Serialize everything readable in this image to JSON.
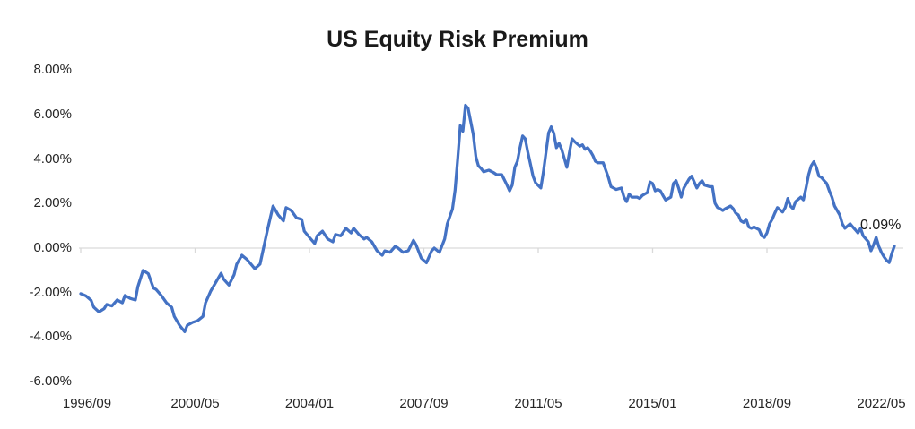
{
  "title": "US Equity Risk Premium",
  "annotation": {
    "label": "0.09%"
  },
  "colors": {
    "line": "#4472C4",
    "axis_line": "#D9D9D9",
    "tick_text": "#262626",
    "title_text": "#1a1a1a"
  },
  "chart_data": {
    "type": "line",
    "title": "US Equity Risk Premium",
    "series_name": "US Equity Risk Premium",
    "grid": "single horizontal baseline at 0%",
    "legend": "none",
    "end_point_label": "0.09%",
    "y_axis": {
      "unit": "%",
      "range": [
        -6,
        8
      ],
      "tick_values": [
        8,
        6,
        4,
        2,
        0,
        -2,
        -4,
        -6
      ],
      "tick_labels": [
        "8.00%",
        "6.00%",
        "4.00%",
        "2.00%",
        "0.00%",
        "-2.00%",
        "-4.00%",
        "-6.00%"
      ]
    },
    "x_axis": {
      "unit": "months since 1996/09 (monthly data)",
      "tick_month_offsets": [
        0,
        44,
        88,
        132,
        176,
        220,
        264,
        308
      ],
      "tick_labels": [
        "1996/09",
        "2000/05",
        "2004/01",
        "2007/09",
        "2011/05",
        "2015/01",
        "2018/09",
        "2022/05"
      ]
    },
    "points_format": [
      "months_since_1996_09",
      "equity_risk_premium_percent"
    ],
    "points": [
      [
        0,
        -2.05
      ],
      [
        2,
        -2.15
      ],
      [
        4,
        -2.35
      ],
      [
        5,
        -2.65
      ],
      [
        7,
        -2.87
      ],
      [
        9,
        -2.72
      ],
      [
        10,
        -2.53
      ],
      [
        12,
        -2.6
      ],
      [
        14,
        -2.33
      ],
      [
        16,
        -2.46
      ],
      [
        17,
        -2.13
      ],
      [
        19,
        -2.26
      ],
      [
        21,
        -2.33
      ],
      [
        22,
        -1.73
      ],
      [
        24,
        -1.0
      ],
      [
        26,
        -1.15
      ],
      [
        28,
        -1.8
      ],
      [
        29,
        -1.86
      ],
      [
        31,
        -2.13
      ],
      [
        33,
        -2.46
      ],
      [
        35,
        -2.66
      ],
      [
        36,
        -3.07
      ],
      [
        38,
        -3.47
      ],
      [
        40,
        -3.76
      ],
      [
        41,
        -3.47
      ],
      [
        43,
        -3.34
      ],
      [
        45,
        -3.26
      ],
      [
        47,
        -3.07
      ],
      [
        48,
        -2.46
      ],
      [
        50,
        -1.93
      ],
      [
        52,
        -1.53
      ],
      [
        54,
        -1.13
      ],
      [
        55,
        -1.4
      ],
      [
        57,
        -1.66
      ],
      [
        59,
        -1.19
      ],
      [
        60,
        -0.72
      ],
      [
        62,
        -0.32
      ],
      [
        64,
        -0.52
      ],
      [
        66,
        -0.79
      ],
      [
        67,
        -0.93
      ],
      [
        69,
        -0.72
      ],
      [
        71,
        0.36
      ],
      [
        72,
        0.89
      ],
      [
        74,
        1.89
      ],
      [
        76,
        1.49
      ],
      [
        78,
        1.22
      ],
      [
        79,
        1.82
      ],
      [
        81,
        1.69
      ],
      [
        83,
        1.36
      ],
      [
        85,
        1.29
      ],
      [
        86,
        0.76
      ],
      [
        88,
        0.48
      ],
      [
        90,
        0.21
      ],
      [
        91,
        0.56
      ],
      [
        93,
        0.76
      ],
      [
        95,
        0.41
      ],
      [
        97,
        0.28
      ],
      [
        98,
        0.61
      ],
      [
        100,
        0.55
      ],
      [
        102,
        0.89
      ],
      [
        104,
        0.68
      ],
      [
        105,
        0.89
      ],
      [
        107,
        0.61
      ],
      [
        109,
        0.41
      ],
      [
        110,
        0.48
      ],
      [
        112,
        0.28
      ],
      [
        114,
        -0.12
      ],
      [
        116,
        -0.32
      ],
      [
        117,
        -0.12
      ],
      [
        119,
        -0.19
      ],
      [
        121,
        0.08
      ],
      [
        122,
        0.01
      ],
      [
        124,
        -0.19
      ],
      [
        126,
        -0.12
      ],
      [
        128,
        0.35
      ],
      [
        129,
        0.15
      ],
      [
        131,
        -0.45
      ],
      [
        133,
        -0.66
      ],
      [
        135,
        -0.12
      ],
      [
        136,
        0.0
      ],
      [
        138,
        -0.19
      ],
      [
        140,
        0.41
      ],
      [
        141,
        1.09
      ],
      [
        143,
        1.76
      ],
      [
        144,
        2.6
      ],
      [
        145,
        4.0
      ],
      [
        146,
        5.5
      ],
      [
        147,
        5.25
      ],
      [
        148,
        6.42
      ],
      [
        149,
        6.28
      ],
      [
        151,
        5.1
      ],
      [
        152,
        4.1
      ],
      [
        153,
        3.7
      ],
      [
        154,
        3.58
      ],
      [
        155,
        3.43
      ],
      [
        157,
        3.5
      ],
      [
        159,
        3.38
      ],
      [
        160,
        3.3
      ],
      [
        162,
        3.3
      ],
      [
        164,
        2.83
      ],
      [
        165,
        2.57
      ],
      [
        166,
        2.83
      ],
      [
        167,
        3.63
      ],
      [
        168,
        3.9
      ],
      [
        169,
        4.51
      ],
      [
        170,
        5.04
      ],
      [
        171,
        4.91
      ],
      [
        172,
        4.31
      ],
      [
        173,
        3.78
      ],
      [
        174,
        3.23
      ],
      [
        175,
        2.93
      ],
      [
        177,
        2.7
      ],
      [
        178,
        3.43
      ],
      [
        179,
        4.31
      ],
      [
        180,
        5.18
      ],
      [
        181,
        5.45
      ],
      [
        182,
        5.15
      ],
      [
        183,
        4.51
      ],
      [
        184,
        4.71
      ],
      [
        185,
        4.44
      ],
      [
        186,
        4.04
      ],
      [
        187,
        3.63
      ],
      [
        188,
        4.3
      ],
      [
        189,
        4.91
      ],
      [
        190,
        4.78
      ],
      [
        192,
        4.58
      ],
      [
        193,
        4.64
      ],
      [
        194,
        4.44
      ],
      [
        195,
        4.51
      ],
      [
        196,
        4.37
      ],
      [
        197,
        4.17
      ],
      [
        198,
        3.9
      ],
      [
        199,
        3.83
      ],
      [
        201,
        3.83
      ],
      [
        202,
        3.5
      ],
      [
        203,
        3.17
      ],
      [
        204,
        2.76
      ],
      [
        205,
        2.7
      ],
      [
        206,
        2.63
      ],
      [
        208,
        2.7
      ],
      [
        209,
        2.29
      ],
      [
        210,
        2.09
      ],
      [
        211,
        2.43
      ],
      [
        212,
        2.29
      ],
      [
        214,
        2.29
      ],
      [
        215,
        2.23
      ],
      [
        216,
        2.36
      ],
      [
        217,
        2.43
      ],
      [
        218,
        2.49
      ],
      [
        219,
        2.97
      ],
      [
        220,
        2.9
      ],
      [
        221,
        2.57
      ],
      [
        222,
        2.63
      ],
      [
        223,
        2.57
      ],
      [
        224,
        2.36
      ],
      [
        225,
        2.16
      ],
      [
        227,
        2.29
      ],
      [
        228,
        2.9
      ],
      [
        229,
        3.03
      ],
      [
        230,
        2.7
      ],
      [
        231,
        2.29
      ],
      [
        232,
        2.7
      ],
      [
        234,
        3.1
      ],
      [
        235,
        3.23
      ],
      [
        236,
        2.97
      ],
      [
        237,
        2.7
      ],
      [
        238,
        2.9
      ],
      [
        239,
        3.03
      ],
      [
        240,
        2.83
      ],
      [
        242,
        2.76
      ],
      [
        243,
        2.76
      ],
      [
        244,
        2.02
      ],
      [
        245,
        1.82
      ],
      [
        246,
        1.77
      ],
      [
        247,
        1.69
      ],
      [
        248,
        1.77
      ],
      [
        250,
        1.89
      ],
      [
        251,
        1.77
      ],
      [
        252,
        1.57
      ],
      [
        253,
        1.49
      ],
      [
        254,
        1.22
      ],
      [
        255,
        1.15
      ],
      [
        256,
        1.29
      ],
      [
        257,
        0.95
      ],
      [
        258,
        0.89
      ],
      [
        259,
        0.95
      ],
      [
        261,
        0.82
      ],
      [
        262,
        0.55
      ],
      [
        263,
        0.48
      ],
      [
        264,
        0.68
      ],
      [
        265,
        1.09
      ],
      [
        266,
        1.29
      ],
      [
        267,
        1.57
      ],
      [
        268,
        1.82
      ],
      [
        270,
        1.62
      ],
      [
        271,
        1.82
      ],
      [
        272,
        2.23
      ],
      [
        273,
        1.89
      ],
      [
        274,
        1.77
      ],
      [
        275,
        2.09
      ],
      [
        277,
        2.29
      ],
      [
        278,
        2.17
      ],
      [
        279,
        2.7
      ],
      [
        280,
        3.3
      ],
      [
        281,
        3.7
      ],
      [
        282,
        3.88
      ],
      [
        283,
        3.63
      ],
      [
        284,
        3.23
      ],
      [
        285,
        3.17
      ],
      [
        286,
        3.03
      ],
      [
        287,
        2.9
      ],
      [
        288,
        2.57
      ],
      [
        289,
        2.29
      ],
      [
        290,
        1.89
      ],
      [
        292,
        1.49
      ],
      [
        293,
        1.09
      ],
      [
        294,
        0.89
      ],
      [
        296,
        1.09
      ],
      [
        297,
        0.95
      ],
      [
        298,
        0.82
      ],
      [
        299,
        0.68
      ],
      [
        300,
        0.89
      ],
      [
        301,
        0.55
      ],
      [
        303,
        0.28
      ],
      [
        304,
        -0.12
      ],
      [
        305,
        0.15
      ],
      [
        306,
        0.48
      ],
      [
        307,
        0.08
      ],
      [
        308,
        -0.19
      ],
      [
        309,
        -0.39
      ],
      [
        310,
        -0.55
      ],
      [
        311,
        -0.65
      ],
      [
        312,
        -0.25
      ],
      [
        313,
        0.09
      ]
    ]
  }
}
